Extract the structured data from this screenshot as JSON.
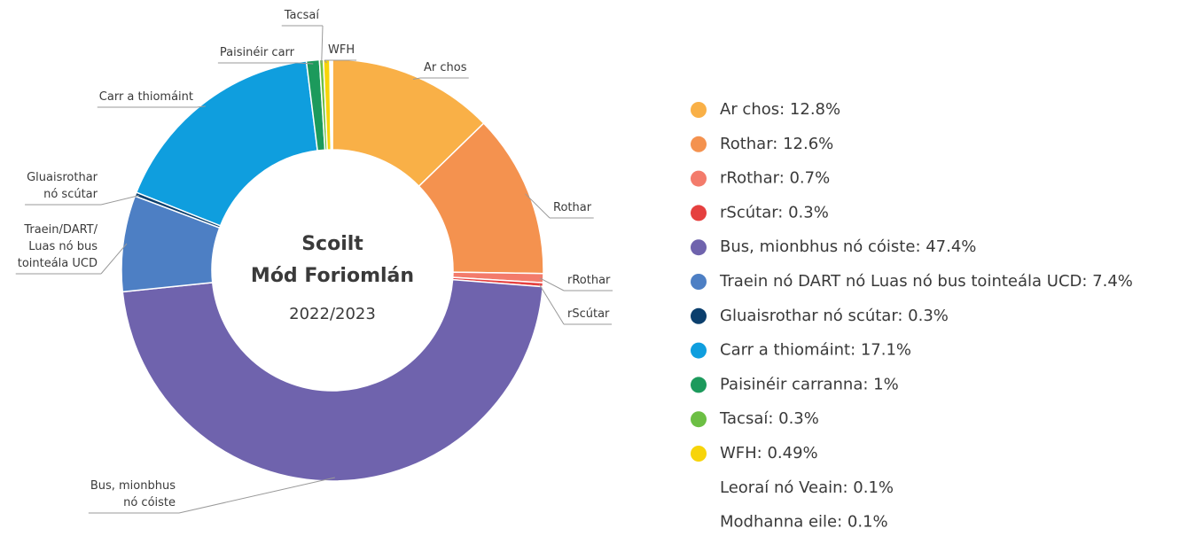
{
  "chart_data": {
    "type": "donut",
    "title": "Scoilt",
    "subtitle": "Mód Foriomlán",
    "period": "2022/2023",
    "categories": [
      [
        "Ar chos"
      ],
      [
        "Rothar"
      ],
      [
        "rRothar"
      ],
      [
        "rScútar"
      ],
      [
        "Bus, mionbhus",
        "nó cóiste"
      ],
      [
        "Traein/DART/",
        "Luas nó bus",
        "tointeála UCD"
      ],
      [
        "Gluaisrothar",
        "nó scútar"
      ],
      [
        "Carr a thiomáint"
      ],
      [
        "Paisinéir carr"
      ],
      [
        "Tacsaí"
      ],
      [
        "WFH"
      ],
      null,
      null
    ],
    "values": [
      12.8,
      12.6,
      0.7,
      0.3,
      47.4,
      7.4,
      0.3,
      17.1,
      1,
      0.3,
      0.49,
      0.1,
      0.1
    ],
    "value_labels": [
      "Ar chos: 12.8%",
      "Rothar: 12.6%",
      "rRothar: 0.7%",
      "rScútar: 0.3%",
      "Bus, mionbhus nó cóiste: 47.4%",
      "Traein nó DART nó Luas nó bus tointeála UCD: 7.4%",
      "Gluaisrothar nó scútar: 0.3%",
      "Carr a thiomáint: 17.1%",
      "Paisinéir carranna: 1%",
      "Tacsaí: 0.3%",
      "WFH: 0.49%",
      "Leoraí nó Veain: 0.1%",
      "Modhanna eile: 0.1%"
    ],
    "colors": [
      "#f9b047",
      "#f4924f",
      "#f37b6b",
      "#e5403f",
      "#6f63ad",
      "#4d7fc4",
      "#0b3f6d",
      "#0f9ede",
      "#1c9a5c",
      "#6cbf44",
      "#f7d40a",
      null,
      null
    ]
  }
}
